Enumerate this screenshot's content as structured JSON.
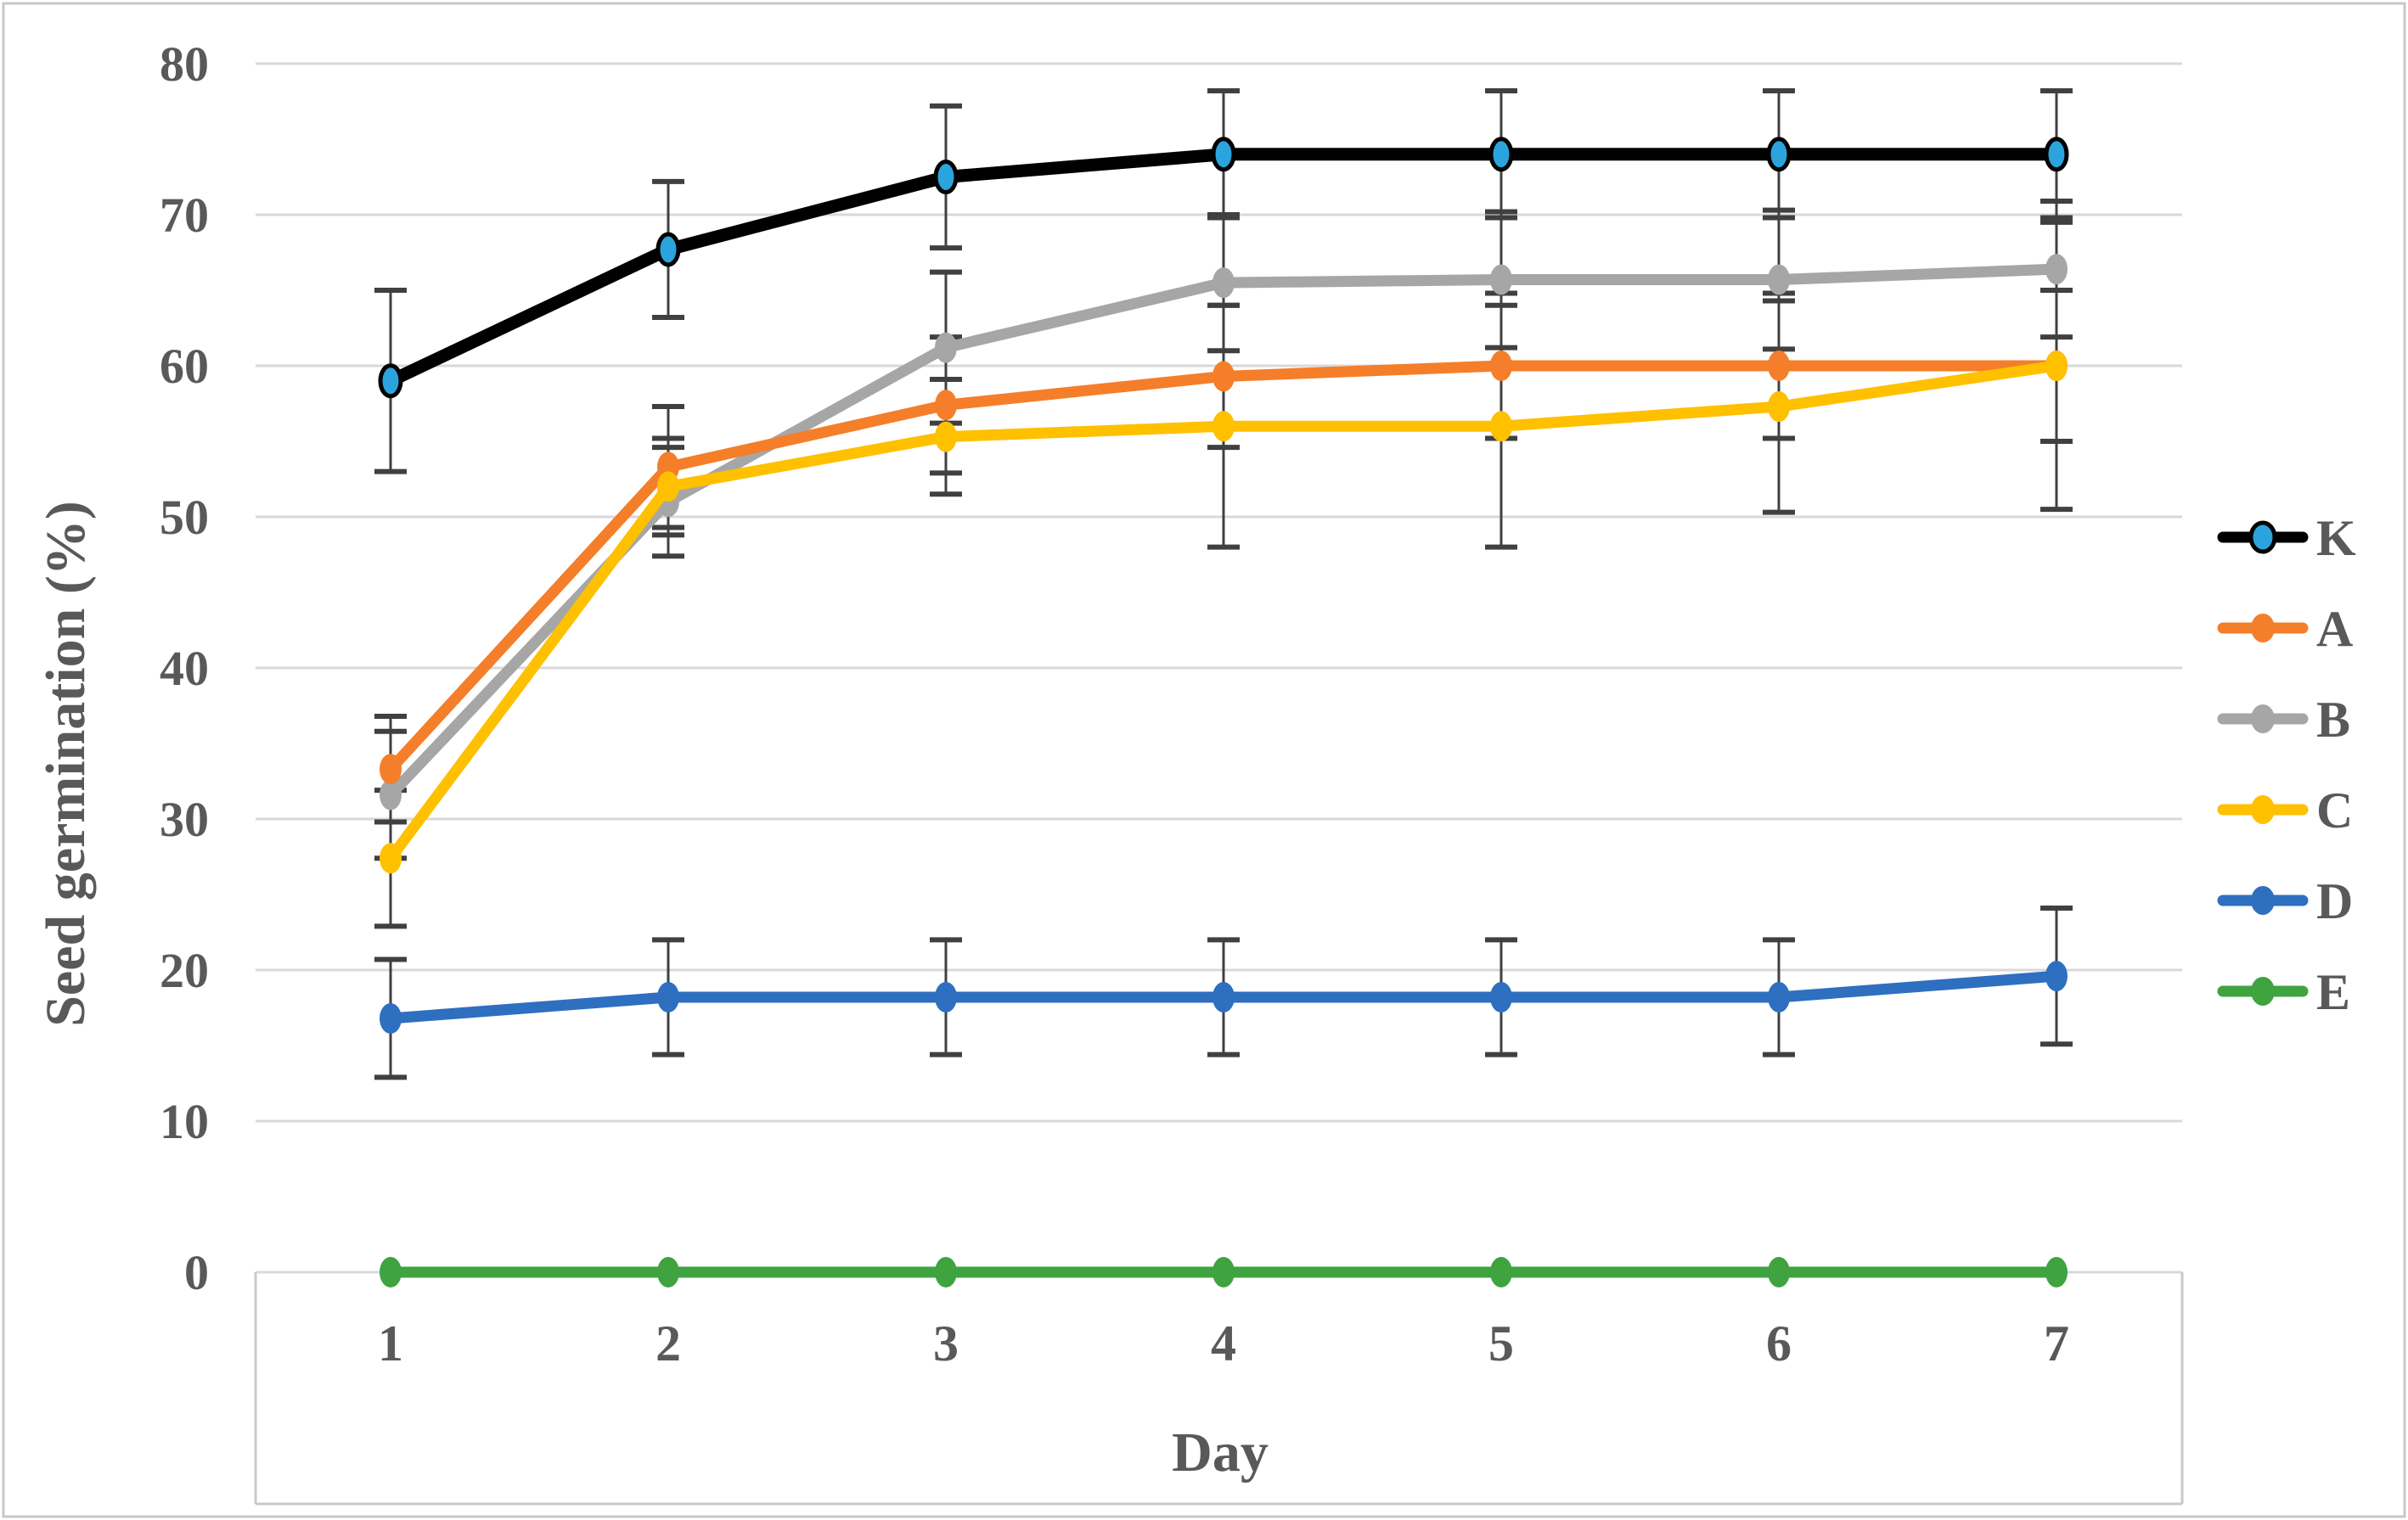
{
  "colors": {
    "background": "#FFFFFF",
    "figure_border": "#C8C8C8",
    "grid": "#D9D9D9",
    "plot_border": "#C9C9C9",
    "error_bar": "#404040",
    "text": "#595959"
  },
  "chart_data": {
    "type": "line",
    "title": "",
    "xlabel": "Day",
    "ylabel": "Seed germination (%)",
    "categories": [
      1,
      2,
      3,
      4,
      5,
      6,
      7
    ],
    "x_tick_labels": [
      "1",
      "2",
      "3",
      "4",
      "5",
      "6",
      "7"
    ],
    "y_tick_labels": [
      "0",
      "10",
      "20",
      "30",
      "40",
      "50",
      "60",
      "70",
      "80"
    ],
    "ylim": [
      0,
      80
    ],
    "y_gridline_step": 10,
    "grid": true,
    "error_bars": true,
    "legend_position": "right-outside",
    "series": [
      {
        "name": "K",
        "line_color": "#000000",
        "marker_fill": "#2BA3DC",
        "marker_stroke": "#000000",
        "values": [
          59,
          67.7,
          72.5,
          74,
          74,
          74,
          74
        ],
        "errors": [
          6,
          4.5,
          4.7,
          4.2,
          4.2,
          4.2,
          4.2
        ]
      },
      {
        "name": "A",
        "line_color": "#F57E2A",
        "marker_fill": "#F57E2A",
        "marker_stroke": "#F57E2A",
        "values": [
          33.3,
          53.3,
          57.4,
          59.3,
          60,
          60,
          60
        ],
        "errors": [
          3.5,
          4,
          4.5,
          4.7,
          4.8,
          4.8,
          5
        ]
      },
      {
        "name": "B",
        "line_color": "#A6A6A6",
        "marker_fill": "#A6A6A6",
        "marker_stroke": "#A6A6A6",
        "values": [
          31.6,
          51,
          61.2,
          65.5,
          65.7,
          65.7,
          66.4
        ],
        "errors": [
          4.2,
          3.6,
          5,
          4.5,
          4.5,
          4.6,
          4.5
        ]
      },
      {
        "name": "C",
        "line_color": "#FFC000",
        "marker_fill": "#FFC000",
        "marker_stroke": "#FFC000",
        "values": [
          27.4,
          52,
          55.3,
          56,
          56,
          57.3,
          60
        ],
        "errors": [
          4.5,
          3.2,
          3.8,
          8,
          8,
          7,
          9.5
        ]
      },
      {
        "name": "D",
        "line_color": "#2E6FC0",
        "marker_fill": "#2E6FC0",
        "marker_stroke": "#2E6FC0",
        "values": [
          16.8,
          18.2,
          18.2,
          18.2,
          18.2,
          18.2,
          19.6
        ],
        "errors": [
          3.9,
          3.8,
          3.8,
          3.8,
          3.8,
          3.8,
          4.5
        ]
      },
      {
        "name": "E",
        "line_color": "#3FA33F",
        "marker_fill": "#3FA33F",
        "marker_stroke": "#3FA33F",
        "values": [
          0,
          0,
          0,
          0,
          0,
          0,
          0
        ],
        "errors": [
          0,
          0,
          0,
          0,
          0,
          0,
          0
        ]
      }
    ],
    "render_order": [
      "K",
      "B",
      "A",
      "C",
      "D",
      "E"
    ],
    "legend_order": [
      "K",
      "A",
      "B",
      "C",
      "D",
      "E"
    ]
  }
}
